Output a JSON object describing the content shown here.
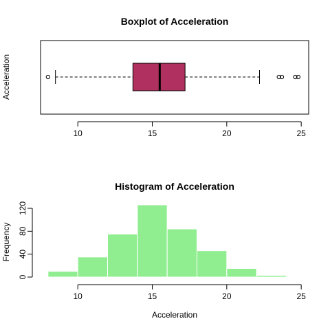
{
  "chart_data": [
    {
      "type": "boxplot",
      "title": "Boxplot of Acceleration",
      "ylabel": "Acceleration",
      "orientation": "horizontal",
      "xlim": [
        7.5,
        25.5
      ],
      "ticks": [
        10,
        15,
        20,
        25
      ],
      "whisker_low": 8.5,
      "q1": 13.7,
      "median": 15.5,
      "q3": 17.2,
      "whisker_high": 22.2,
      "outliers": [
        8.0,
        23.5,
        23.7,
        24.6,
        24.8
      ],
      "box_color": "#b03060"
    },
    {
      "type": "histogram",
      "title": "Histogram of Acceleration",
      "xlabel": "Acceleration",
      "ylabel": "Frequency",
      "xlim": [
        7.5,
        25.5
      ],
      "ylim": [
        0,
        130
      ],
      "xticks": [
        10,
        15,
        20,
        25
      ],
      "yticks": [
        0,
        40,
        80,
        120
      ],
      "bins": [
        8,
        10,
        12,
        14,
        16,
        18,
        20,
        22,
        24
      ],
      "counts": [
        10,
        35,
        75,
        126,
        84,
        46,
        15,
        3
      ],
      "bar_color": "#90ee90"
    }
  ]
}
